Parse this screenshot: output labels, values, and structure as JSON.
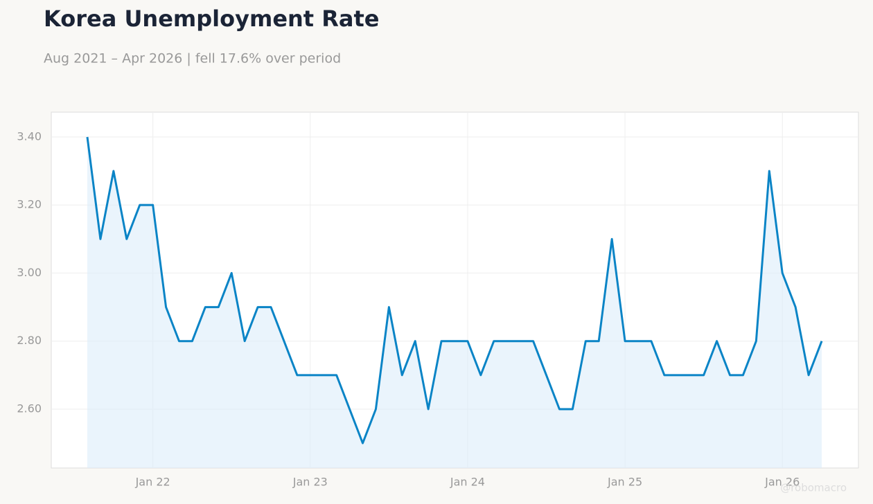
{
  "chart_data": {
    "type": "line",
    "title": "Korea Unemployment Rate",
    "subtitle": "Aug 2021 – Apr 2026 | fell 17.6% over period",
    "watermark": "@robomacro",
    "x": [
      "2021-08",
      "2021-09",
      "2021-10",
      "2021-11",
      "2021-12",
      "2022-01",
      "2022-02",
      "2022-03",
      "2022-04",
      "2022-05",
      "2022-06",
      "2022-07",
      "2022-08",
      "2022-09",
      "2022-10",
      "2022-11",
      "2022-12",
      "2023-01",
      "2023-02",
      "2023-03",
      "2023-04",
      "2023-05",
      "2023-06",
      "2023-07",
      "2023-08",
      "2023-09",
      "2023-10",
      "2023-11",
      "2023-12",
      "2024-01",
      "2024-02",
      "2024-03",
      "2024-04",
      "2024-05",
      "2024-06",
      "2024-07",
      "2024-08",
      "2024-09",
      "2024-10",
      "2024-11",
      "2024-12",
      "2025-01",
      "2025-02",
      "2025-03",
      "2025-04",
      "2025-05",
      "2025-06",
      "2025-07",
      "2025-08",
      "2025-09",
      "2025-10",
      "2025-11",
      "2025-12",
      "2026-01",
      "2026-02",
      "2026-03",
      "2026-04"
    ],
    "series": [
      {
        "name": "Unemployment Rate",
        "color": "#0a84c6",
        "values": [
          3.4,
          3.1,
          3.3,
          3.1,
          3.2,
          3.2,
          2.9,
          2.8,
          2.8,
          2.9,
          2.9,
          3.0,
          2.8,
          2.9,
          2.9,
          2.8,
          2.7,
          2.7,
          2.7,
          2.7,
          2.6,
          2.5,
          2.6,
          2.9,
          2.7,
          2.8,
          2.6,
          2.8,
          2.8,
          2.8,
          2.7,
          2.8,
          2.8,
          2.8,
          2.8,
          2.7,
          2.6,
          2.6,
          2.8,
          2.8,
          3.1,
          2.8,
          2.8,
          2.8,
          2.7,
          2.7,
          2.7,
          2.7,
          2.8,
          2.7,
          2.7,
          2.8,
          3.3,
          3.0,
          2.9,
          2.7,
          2.8
        ]
      }
    ],
    "ylim": [
      2.427,
      3.473
    ],
    "yticks": [
      {
        "value": 2.6,
        "label": "2.60"
      },
      {
        "value": 2.8,
        "label": "2.80"
      },
      {
        "value": 3.0,
        "label": "3.00"
      },
      {
        "value": 3.2,
        "label": "3.20"
      },
      {
        "value": 3.4,
        "label": "3.40"
      }
    ],
    "xticks": [
      {
        "value": "2022-01",
        "label": "Jan 22"
      },
      {
        "value": "2023-01",
        "label": "Jan 23"
      },
      {
        "value": "2024-01",
        "label": "Jan 24"
      },
      {
        "value": "2025-01",
        "label": "Jan 25"
      },
      {
        "value": "2026-01",
        "label": "Jan 26"
      }
    ],
    "grid": true
  }
}
